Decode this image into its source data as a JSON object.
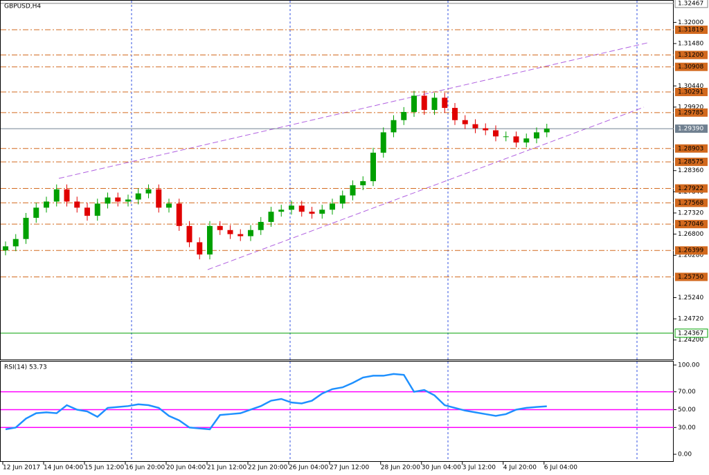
{
  "chart_data": [
    {
      "type": "candlestick",
      "title": "GBPUSD,H4",
      "ylim": [
        1.2372,
        1.3255
      ],
      "yticks": [
        {
          "value": 1.32,
          "label": "1.32000"
        },
        {
          "value": 1.3148,
          "label": "1.31480"
        },
        {
          "value": 1.3044,
          "label": "1.30440"
        },
        {
          "value": 1.2992,
          "label": "1.29920"
        },
        {
          "value": 1.2836,
          "label": "1.28360"
        },
        {
          "value": 1.2784,
          "label": "1.27840"
        },
        {
          "value": 1.2732,
          "label": "1.27320"
        },
        {
          "value": 1.268,
          "label": "1.26800"
        },
        {
          "value": 1.2628,
          "label": "1.26280"
        },
        {
          "value": 1.2524,
          "label": "1.25240"
        },
        {
          "value": 1.2472,
          "label": "1.24720"
        },
        {
          "value": 1.242,
          "label": "1.24200"
        }
      ],
      "levels": [
        1.31819,
        {
          "value": 1.312,
          "label": "1.31200"
        },
        1.30908,
        1.30291,
        1.29785,
        1.28903,
        1.28575,
        1.27922,
        1.27568,
        1.27046,
        1.26399,
        {
          "value": 1.2575,
          "label": "1.25750"
        }
      ],
      "level_color": "#d2691e",
      "hlines": [
        {
          "value": 1.32467,
          "color": "#808080"
        },
        {
          "value": 1.24367,
          "color": "#00a000"
        }
      ],
      "last_price": {
        "value": 1.2939,
        "label": "1.29390"
      },
      "up_color": "#00a000",
      "down_color": "#e00000",
      "categories": [
        "12 Jun 2017",
        null,
        null,
        null,
        "14 Jun 04:00",
        null,
        null,
        null,
        "15 Jun 12:00",
        null,
        null,
        null,
        "16 Jun 20:00",
        null,
        null,
        null,
        "20 Jun 04:00",
        null,
        null,
        null,
        "21 Jun 12:00",
        null,
        null,
        null,
        "22 Jun 20:00",
        null,
        null,
        null,
        "26 Jun 04:00",
        null,
        null,
        null,
        "27 Jun 12:00",
        null,
        null,
        null,
        null,
        "28 Jun 20:00",
        null,
        null,
        null,
        "30 Jun 04:00",
        null,
        null,
        null,
        "3 Jul 12:00",
        null,
        null,
        null,
        "4 Jul 20:00",
        null,
        null,
        null,
        "6 Jul 04:00"
      ],
      "open": [
        1.264,
        1.265,
        1.2668,
        1.272,
        1.2745,
        1.276,
        1.279,
        1.276,
        1.2745,
        1.2725,
        1.2755,
        1.277,
        1.276,
        1.2765,
        1.278,
        1.279,
        1.2745,
        1.2755,
        1.27,
        1.266,
        1.263,
        1.27,
        1.269,
        1.268,
        1.2675,
        1.269,
        1.271,
        1.2735,
        1.274,
        1.275,
        1.2735,
        1.273,
        1.274,
        1.2755,
        1.2775,
        1.28,
        1.281,
        1.288,
        1.293,
        1.296,
        1.298,
        1.302,
        1.2985,
        1.3015,
        1.299,
        1.296,
        1.295,
        1.294,
        1.2935,
        1.292,
        1.292,
        1.2905,
        1.2915,
        1.293
      ],
      "high": [
        1.2662,
        1.268,
        1.2732,
        1.2757,
        1.2772,
        1.2802,
        1.2802,
        1.2772,
        1.2757,
        1.2767,
        1.2782,
        1.2782,
        1.2777,
        1.2792,
        1.2802,
        1.2802,
        1.2767,
        1.2767,
        1.2712,
        1.2672,
        1.2712,
        1.2712,
        1.2702,
        1.2692,
        1.2702,
        1.2722,
        1.2747,
        1.2752,
        1.2762,
        1.2762,
        1.2747,
        1.2752,
        1.2767,
        1.2787,
        1.2812,
        1.2822,
        1.2892,
        1.2942,
        1.2972,
        1.2992,
        1.3032,
        1.3032,
        1.3027,
        1.3027,
        1.3002,
        1.2972,
        1.2962,
        1.2952,
        1.2947,
        1.2932,
        1.2932,
        1.2927,
        1.2942,
        1.2951
      ],
      "low": [
        1.2628,
        1.2638,
        1.2656,
        1.2708,
        1.2733,
        1.2748,
        1.2748,
        1.2733,
        1.2713,
        1.2713,
        1.2743,
        1.2748,
        1.2748,
        1.2753,
        1.2768,
        1.2733,
        1.2733,
        1.2688,
        1.2648,
        1.2618,
        1.2618,
        1.2678,
        1.2668,
        1.2663,
        1.2663,
        1.2678,
        1.2698,
        1.2723,
        1.2728,
        1.2723,
        1.2718,
        1.2718,
        1.2728,
        1.2743,
        1.2763,
        1.2788,
        1.2798,
        1.2868,
        1.2918,
        1.2948,
        1.2968,
        1.2973,
        1.2973,
        1.2978,
        1.2948,
        1.2938,
        1.2928,
        1.2923,
        1.2908,
        1.2908,
        1.2893,
        1.2893,
        1.2903,
        1.2918
      ],
      "close": [
        1.265,
        1.2668,
        1.272,
        1.2745,
        1.276,
        1.279,
        1.276,
        1.2745,
        1.2725,
        1.2755,
        1.277,
        1.276,
        1.2765,
        1.278,
        1.279,
        1.2745,
        1.2755,
        1.27,
        1.266,
        1.263,
        1.27,
        1.269,
        1.268,
        1.2675,
        1.269,
        1.271,
        1.2735,
        1.274,
        1.275,
        1.2735,
        1.273,
        1.274,
        1.2755,
        1.2775,
        1.28,
        1.281,
        1.288,
        1.293,
        1.296,
        1.298,
        1.302,
        1.2985,
        1.3015,
        1.299,
        1.296,
        1.295,
        1.294,
        1.2935,
        1.292,
        1.292,
        1.2905,
        1.2915,
        1.293,
        1.2939
      ]
    },
    {
      "type": "line",
      "title": "RSI(14) 53.73",
      "color": "#1e90ff",
      "ylim": [
        -8.5,
        104.6
      ],
      "yticks": [
        {
          "value": 100,
          "label": "100.00"
        },
        {
          "value": 70,
          "label": "70.00"
        },
        {
          "value": 50,
          "label": "50.00"
        },
        {
          "value": 30,
          "label": "30.00"
        },
        {
          "value": 0,
          "label": "0.00"
        }
      ],
      "levels": [
        70,
        50,
        30
      ],
      "level_color": "#ff00ff",
      "values": [
        28,
        30,
        40,
        46,
        47,
        46,
        55,
        50,
        48,
        42,
        52,
        53,
        54,
        56,
        55,
        52,
        43,
        38,
        30,
        29,
        28,
        44,
        45,
        46,
        50,
        54,
        60,
        62,
        58,
        57,
        60,
        68,
        73,
        75,
        80,
        86,
        88,
        88,
        90,
        89,
        70,
        72,
        66,
        55,
        52,
        49,
        47,
        45,
        43,
        45,
        50,
        52,
        53,
        53.73
      ]
    }
  ]
}
